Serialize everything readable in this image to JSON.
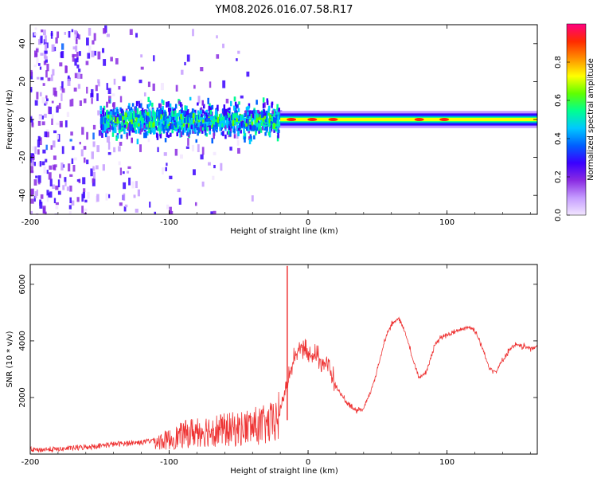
{
  "title": "YM08.2026.016.07.58.R17",
  "colorbar": {
    "label": "Normalized spectral amplitude",
    "ticks": [
      0.0,
      0.2,
      0.4,
      0.6,
      0.8
    ],
    "tick_labels": [
      "0.0",
      "0.2",
      "0.4",
      "0.6",
      "0.8"
    ],
    "range": [
      0,
      1
    ],
    "colors": [
      "#f2e6ff",
      "#c59cff",
      "#8a2be2",
      "#3a00ff",
      "#0060ff",
      "#00c8ff",
      "#00ff90",
      "#60ff00",
      "#ffff00",
      "#ff9000",
      "#ff2a00",
      "#ff0080"
    ]
  },
  "chart_data": [
    {
      "type": "heatmap",
      "name": "spectrogram",
      "title": "YM08.2026.016.07.58.R17",
      "xlabel": "Height of straight line (km)",
      "ylabel": "Frequency (Hz)",
      "xlim": [
        -200,
        165
      ],
      "ylim": [
        -50,
        50
      ],
      "xticks": [
        -200,
        -100,
        0,
        100
      ],
      "xtick_labels": [
        "-200",
        "-100",
        "0",
        "100"
      ],
      "yticks": [
        -40,
        -20,
        0,
        20,
        40
      ],
      "ytick_labels": [
        "-40",
        "-20",
        "0",
        "20",
        "40"
      ],
      "description_points": {
        "diffuse_scatter_x": [
          -200,
          -120
        ],
        "noisy_band_x": [
          -150,
          -20
        ],
        "noisy_band_halfwidth_hz": [
          3,
          8
        ],
        "clean_line_x": [
          -20,
          165
        ],
        "clean_line_halfwidth_hz": 2.5,
        "hot_spots_x": [
          -12,
          3,
          18,
          80,
          98
        ]
      }
    },
    {
      "type": "line",
      "name": "snr",
      "xlabel": "Height of straight line (km)",
      "ylabel": "SNR (10 * v/v)",
      "xlim": [
        -200,
        165
      ],
      "ylim": [
        0,
        6700
      ],
      "xticks": [
        -200,
        -100,
        0,
        100
      ],
      "xtick_labels": [
        "-200",
        "-100",
        "0",
        "100"
      ],
      "yticks": [
        2000,
        4000,
        6000
      ],
      "ytick_labels": [
        "2000",
        "4000",
        "6000"
      ],
      "color": "#ee3333",
      "x": [
        -200,
        -180,
        -160,
        -140,
        -120,
        -100,
        -90,
        -80,
        -70,
        -60,
        -50,
        -40,
        -30,
        -25,
        -20,
        -15,
        -10,
        -5,
        0,
        5,
        10,
        15,
        20,
        25,
        30,
        35,
        40,
        45,
        50,
        55,
        60,
        65,
        70,
        75,
        80,
        85,
        90,
        95,
        100,
        105,
        110,
        115,
        120,
        125,
        130,
        135,
        140,
        145,
        150,
        155,
        160,
        165
      ],
      "y": [
        150,
        170,
        250,
        350,
        420,
        600,
        800,
        950,
        1000,
        1000,
        1050,
        1150,
        1200,
        1300,
        1600,
        2500,
        3400,
        3800,
        3500,
        3500,
        3300,
        3100,
        2400,
        2000,
        1700,
        1500,
        1600,
        2200,
        3000,
        4000,
        4600,
        4800,
        4300,
        3400,
        2700,
        2900,
        3700,
        4100,
        4200,
        4300,
        4400,
        4500,
        4400,
        3800,
        3100,
        2900,
        3300,
        3700,
        3850,
        3800,
        3750,
        3800
      ],
      "spike": {
        "x": -15,
        "y": 6650
      }
    }
  ]
}
